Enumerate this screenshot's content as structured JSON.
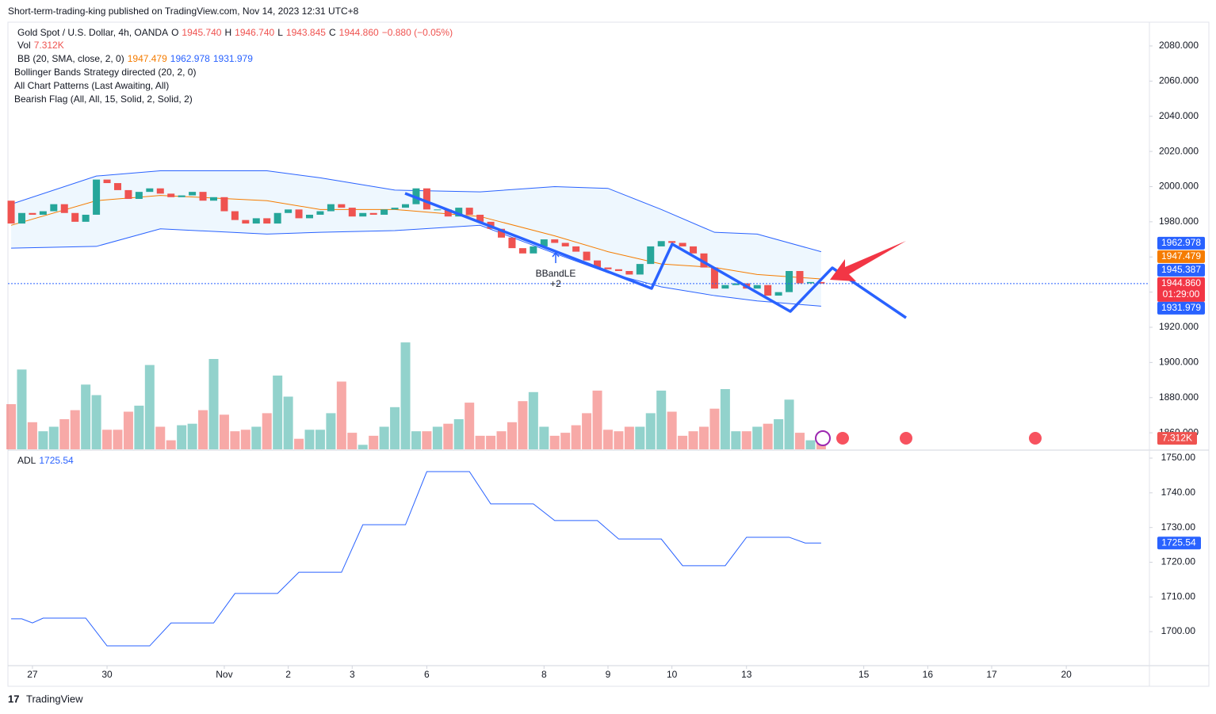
{
  "header": {
    "publisher": "Short-term-trading-king published on TradingView.com, Nov 14, 2023 12:31 UTC+8"
  },
  "footer": {
    "brand": "TradingView"
  },
  "chart_data": {
    "type": "candlestick",
    "title": "Gold Spot / U.S. Dollar, 4h, OANDA",
    "ohlc_legend": [
      "O",
      "1945.740",
      "H",
      "1946.740",
      "L",
      "1943.845",
      "C",
      "1944.860",
      "−0.880 (−0.05%)"
    ],
    "indicators": [
      "Bollinger Bands Strategy directed (20, 2, 0)",
      "All Chart Patterns (Last Awaiting, All)",
      "Bearish Flag (All, All, 15, Solid, 2, Solid, 2)"
    ],
    "annotations": [
      "BBandLE",
      "+2"
    ],
    "candles": {
      "open": [
        1992,
        1979,
        1985,
        1984,
        1986,
        1990,
        1985,
        1980,
        1984,
        2004,
        2002,
        1998,
        1993,
        1997,
        1999,
        1996,
        1994,
        1995,
        1997,
        1992,
        1994,
        1986,
        1981,
        1979,
        1982,
        1979,
        1985,
        1987,
        1982,
        1984,
        1986,
        1990,
        1988,
        1983,
        1985,
        1984,
        1987,
        1988,
        1990,
        1999,
        1987,
        1987,
        1983,
        1988,
        1984,
        1980,
        1976,
        1971,
        1965,
        1962,
        1966,
        1970,
        1968,
        1966,
        1963,
        1958,
        1954,
        1953,
        1952,
        1950,
        1956,
        1966,
        1969,
        1968,
        1966,
        1962,
        1954,
        1942,
        1944,
        1945,
        1942,
        1944,
        1938,
        1940,
        1952,
        1945,
        1945.74
      ],
      "close": [
        1979,
        1985,
        1984,
        1986,
        1990,
        1985,
        1980,
        1984,
        2004,
        2002,
        1998,
        1993,
        1997,
        1999,
        1996,
        1994,
        1995,
        1997,
        1992,
        1994,
        1986,
        1981,
        1979,
        1982,
        1979,
        1985,
        1987,
        1982,
        1984,
        1986,
        1990,
        1988,
        1983,
        1985,
        1984,
        1987,
        1988,
        1990,
        1999,
        1987,
        1987,
        1983,
        1988,
        1984,
        1980,
        1976,
        1971,
        1965,
        1962,
        1966,
        1970,
        1968,
        1966,
        1963,
        1958,
        1954,
        1953,
        1952,
        1950,
        1956,
        1966,
        1969,
        1968,
        1966,
        1962,
        1954,
        1942,
        1944,
        1945,
        1942,
        1944,
        1938,
        1940,
        1952,
        1945,
        1945.74,
        1944.86
      ]
    },
    "up_color": "#26a69a",
    "down_color": "#ef5350",
    "xlim": [
      -0.3,
      106.8
    ],
    "xticks": [
      {
        "value": 2,
        "label": "27"
      },
      {
        "value": 9,
        "label": "30"
      },
      {
        "value": 20,
        "label": "Nov"
      },
      {
        "value": 26,
        "label": "2"
      },
      {
        "value": 32,
        "label": "3"
      },
      {
        "value": 39,
        "label": "6"
      },
      {
        "value": 50,
        "label": "8"
      },
      {
        "value": 56,
        "label": "9"
      },
      {
        "value": 62,
        "label": "10"
      },
      {
        "value": 69,
        "label": "13"
      },
      {
        "value": 80,
        "label": "15"
      },
      {
        "value": 86,
        "label": "16"
      },
      {
        "value": 92,
        "label": "17"
      },
      {
        "value": 99,
        "label": "20"
      }
    ],
    "ylim": [
      1850.6,
      2092.6
    ],
    "yticks": [
      {
        "value": 1860,
        "label": "1860.000"
      },
      {
        "value": 1880,
        "label": "1880.000"
      },
      {
        "value": 1900,
        "label": "1900.000"
      },
      {
        "value": 1920,
        "label": "1920.000"
      },
      {
        "value": 1940,
        "label": "1940.000"
      },
      {
        "value": 1960,
        "label": "1960.000"
      },
      {
        "value": 1980,
        "label": "1980.000"
      },
      {
        "value": 2000,
        "label": "2000.000"
      },
      {
        "value": 2020,
        "label": "2020.000"
      },
      {
        "value": 2040,
        "label": "2040.000"
      },
      {
        "value": 2060,
        "label": "2060.000"
      },
      {
        "value": 2080,
        "label": "2080.000"
      }
    ],
    "bollinger": {
      "name": "BB (20, SMA, close, 2, 0)",
      "value_labels": [
        "1947.479",
        "1962.978",
        "1931.979"
      ],
      "x": [
        0,
        8,
        14,
        24,
        29,
        36,
        44,
        51,
        56,
        61,
        66,
        70,
        76
      ],
      "upper": [
        1990,
        2006,
        2009,
        2009,
        2005,
        1998,
        1997,
        2000,
        1999,
        1987,
        1974,
        1973,
        1962.978
      ],
      "basis": [
        1978,
        1992,
        1995,
        1992,
        1987,
        1987,
        1983,
        1972,
        1963,
        1956,
        1954,
        1950,
        1947.479
      ],
      "lower": [
        1965,
        1966,
        1976,
        1973,
        1974,
        1975,
        1978,
        1962,
        1951,
        1943,
        1938,
        1935,
        1931.979
      ],
      "band_color": "#2962ff",
      "basis_color": "#f57c00"
    },
    "price_tags": [
      {
        "value": 1962.978,
        "label": "1962.978",
        "color": "#2962ff"
      },
      {
        "value": 1947.479,
        "label": "1947.479",
        "color": "#f57c00"
      },
      {
        "value": 1945.387,
        "label": "1945.387",
        "color": "#2962ff"
      },
      {
        "value": 1944.86,
        "label": "1944.860",
        "color": "#f23645",
        "countdown": "01:29:00"
      },
      {
        "value": 1931.979,
        "label": "1931.979",
        "color": "#2962ff"
      }
    ],
    "volume": {
      "name": "Vol",
      "value_label": "7.312K",
      "ylim": [
        0,
        80
      ],
      "values": [
        30,
        53,
        18,
        12,
        15,
        20,
        26,
        43,
        36,
        13,
        13,
        25,
        29,
        56,
        15,
        6,
        16,
        17,
        26,
        60,
        23,
        12,
        13,
        15,
        24,
        49,
        35,
        7,
        13,
        13,
        24,
        45,
        11,
        3,
        9,
        15,
        28,
        71,
        12,
        12,
        15,
        17,
        20,
        31,
        9,
        9,
        12,
        18,
        32,
        38,
        15,
        9,
        11,
        16,
        24,
        39,
        13,
        12,
        15,
        15,
        24,
        39,
        25,
        9,
        12,
        15,
        27,
        40,
        12,
        12,
        15,
        17,
        20,
        33,
        11,
        6,
        7.312
      ]
    },
    "adl": {
      "name": "ADL",
      "value_label": "1725.54",
      "color": "#2962ff",
      "ylim": [
        1690.2,
        1752.3
      ],
      "yticks": [
        {
          "value": 1700,
          "label": "1700.00"
        },
        {
          "value": 1710,
          "label": "1710.00"
        },
        {
          "value": 1720,
          "label": "1720.00"
        },
        {
          "value": 1730,
          "label": "1730.00"
        },
        {
          "value": 1740,
          "label": "1740.00"
        },
        {
          "value": 1750,
          "label": "1750.00"
        }
      ],
      "x": [
        0,
        1,
        2,
        3,
        7,
        9,
        13,
        15,
        19,
        21,
        25,
        27,
        31,
        33,
        37,
        39,
        43,
        45,
        49,
        51,
        55,
        57,
        61,
        63,
        67,
        69,
        73,
        74.5,
        76
      ],
      "values": [
        1703.7,
        1703.7,
        1702.5,
        1703.9,
        1703.9,
        1695.9,
        1695.9,
        1702.5,
        1702.5,
        1711,
        1711,
        1717.1,
        1717.1,
        1730.8,
        1730.8,
        1746.1,
        1746.1,
        1736.8,
        1736.8,
        1732,
        1732,
        1726.7,
        1726.7,
        1719,
        1719,
        1727.2,
        1727.2,
        1725.54,
        1725.54
      ]
    }
  }
}
